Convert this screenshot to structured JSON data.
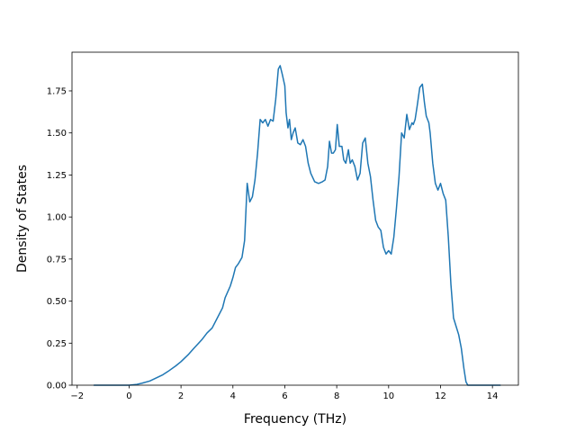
{
  "chart_data": {
    "type": "line",
    "xlabel": "Frequency (THz)",
    "ylabel": "Density of States",
    "xlim": [
      -2.2,
      15.0
    ],
    "ylim": [
      0.0,
      1.98
    ],
    "xticks": [
      -2,
      0,
      2,
      4,
      6,
      8,
      10,
      12,
      14
    ],
    "yticks": [
      0.0,
      0.25,
      0.5,
      0.75,
      1.0,
      1.25,
      1.5,
      1.75
    ],
    "xtick_labels": [
      "−2",
      "0",
      "2",
      "4",
      "6",
      "8",
      "10",
      "12",
      "14"
    ],
    "ytick_labels": [
      "0.00",
      "0.25",
      "0.50",
      "0.75",
      "1.00",
      "1.25",
      "1.50",
      "1.75"
    ],
    "grid": false,
    "legend": "none",
    "line_color": "#1f77b4",
    "series": [
      {
        "x": [
          -1.35,
          -1.0,
          -0.5,
          0.0,
          0.3,
          0.5,
          0.8,
          1.0,
          1.3,
          1.5,
          1.8,
          2.0,
          2.3,
          2.5,
          2.8,
          3.0,
          3.2,
          3.4,
          3.6,
          3.7,
          3.9,
          4.0,
          4.1,
          4.2,
          4.35,
          4.45,
          4.55,
          4.65,
          4.75,
          4.85,
          4.95,
          5.05,
          5.15,
          5.25,
          5.35,
          5.45,
          5.55,
          5.65,
          5.75,
          5.82,
          5.9,
          6.0,
          6.05,
          6.12,
          6.18,
          6.25,
          6.32,
          6.4,
          6.5,
          6.6,
          6.7,
          6.8,
          6.9,
          7.0,
          7.15,
          7.3,
          7.45,
          7.55,
          7.65,
          7.72,
          7.8,
          7.87,
          7.95,
          8.02,
          8.1,
          8.2,
          8.27,
          8.35,
          8.45,
          8.52,
          8.6,
          8.7,
          8.8,
          8.9,
          9.0,
          9.1,
          9.2,
          9.3,
          9.4,
          9.5,
          9.6,
          9.7,
          9.8,
          9.9,
          10.0,
          10.1,
          10.2,
          10.3,
          10.4,
          10.5,
          10.6,
          10.7,
          10.8,
          10.9,
          10.95,
          11.02,
          11.1,
          11.2,
          11.3,
          11.38,
          11.45,
          11.55,
          11.6,
          11.7,
          11.8,
          11.9,
          12.0,
          12.1,
          12.2,
          12.3,
          12.4,
          12.5,
          12.6,
          12.7,
          12.8,
          12.9,
          12.98,
          13.05,
          13.3,
          14.3
        ],
        "y": [
          0.0,
          0.0,
          0.0,
          0.0,
          0.005,
          0.012,
          0.025,
          0.04,
          0.062,
          0.082,
          0.115,
          0.14,
          0.185,
          0.22,
          0.27,
          0.31,
          0.34,
          0.4,
          0.46,
          0.52,
          0.59,
          0.64,
          0.7,
          0.72,
          0.76,
          0.86,
          1.2,
          1.09,
          1.12,
          1.22,
          1.38,
          1.58,
          1.56,
          1.58,
          1.54,
          1.58,
          1.57,
          1.7,
          1.88,
          1.9,
          1.85,
          1.78,
          1.62,
          1.53,
          1.58,
          1.46,
          1.5,
          1.53,
          1.44,
          1.43,
          1.46,
          1.42,
          1.32,
          1.26,
          1.21,
          1.2,
          1.21,
          1.22,
          1.3,
          1.45,
          1.38,
          1.38,
          1.4,
          1.55,
          1.42,
          1.42,
          1.34,
          1.32,
          1.4,
          1.32,
          1.34,
          1.3,
          1.22,
          1.26,
          1.44,
          1.47,
          1.32,
          1.24,
          1.1,
          0.98,
          0.94,
          0.92,
          0.82,
          0.78,
          0.8,
          0.78,
          0.88,
          1.05,
          1.24,
          1.5,
          1.47,
          1.61,
          1.52,
          1.56,
          1.55,
          1.58,
          1.66,
          1.77,
          1.79,
          1.68,
          1.6,
          1.56,
          1.5,
          1.32,
          1.2,
          1.16,
          1.2,
          1.14,
          1.1,
          0.88,
          0.6,
          0.4,
          0.35,
          0.3,
          0.22,
          0.1,
          0.02,
          0.0,
          0.0,
          0.0
        ]
      }
    ]
  }
}
